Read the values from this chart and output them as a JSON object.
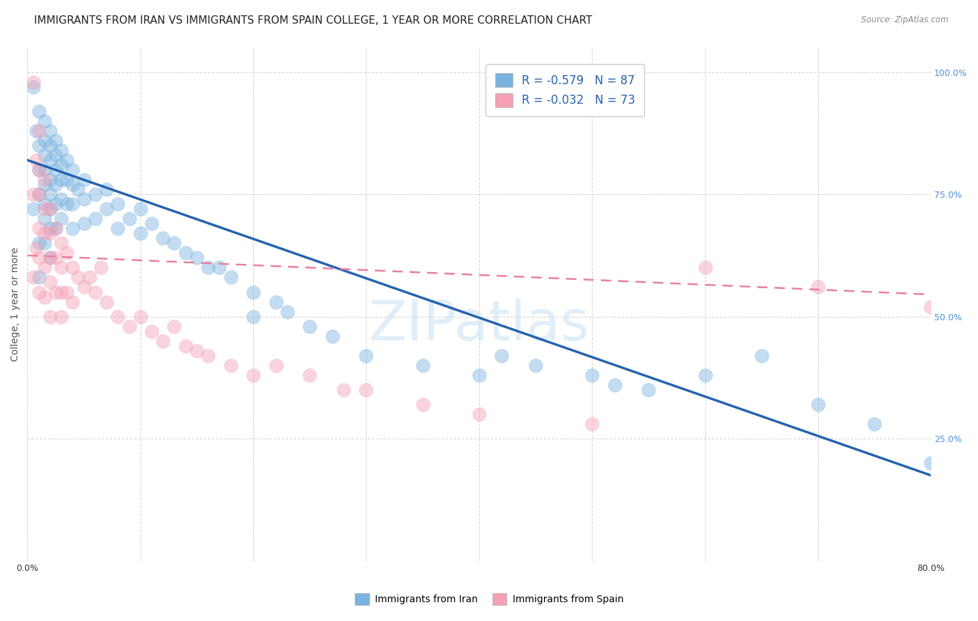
{
  "title": "IMMIGRANTS FROM IRAN VS IMMIGRANTS FROM SPAIN COLLEGE, 1 YEAR OR MORE CORRELATION CHART",
  "source": "Source: ZipAtlas.com",
  "ylabel": "College, 1 year or more",
  "xlim": [
    0.0,
    0.8
  ],
  "ylim": [
    0.0,
    1.05
  ],
  "iran_color": "#7ab3e0",
  "spain_color": "#f4a0b5",
  "iran_line_color": "#2563ae",
  "spain_line_color": "#e87fa0",
  "legend_r_iran": "-0.579",
  "legend_n_iran": "87",
  "legend_r_spain": "-0.032",
  "legend_n_spain": "73",
  "iran_line_x0": 0.0,
  "iran_line_y0": 0.82,
  "iran_line_x1": 0.8,
  "iran_line_y1": 0.175,
  "spain_line_x0": 0.0,
  "spain_line_y0": 0.625,
  "spain_line_x1": 0.8,
  "spain_line_y1": 0.545,
  "watermark": "ZIPatlas",
  "iran_x": [
    0.005,
    0.005,
    0.008,
    0.01,
    0.01,
    0.01,
    0.01,
    0.01,
    0.01,
    0.015,
    0.015,
    0.015,
    0.015,
    0.015,
    0.015,
    0.015,
    0.015,
    0.02,
    0.02,
    0.02,
    0.02,
    0.02,
    0.02,
    0.02,
    0.02,
    0.025,
    0.025,
    0.025,
    0.025,
    0.025,
    0.025,
    0.03,
    0.03,
    0.03,
    0.03,
    0.03,
    0.035,
    0.035,
    0.035,
    0.04,
    0.04,
    0.04,
    0.04,
    0.045,
    0.05,
    0.05,
    0.05,
    0.06,
    0.06,
    0.07,
    0.07,
    0.08,
    0.08,
    0.09,
    0.1,
    0.1,
    0.11,
    0.12,
    0.13,
    0.14,
    0.15,
    0.16,
    0.17,
    0.18,
    0.2,
    0.2,
    0.22,
    0.23,
    0.25,
    0.27,
    0.3,
    0.35,
    0.4,
    0.42,
    0.45,
    0.5,
    0.52,
    0.55,
    0.6,
    0.65,
    0.7,
    0.75,
    0.8
  ],
  "iran_y": [
    0.97,
    0.72,
    0.88,
    0.92,
    0.85,
    0.8,
    0.75,
    0.65,
    0.58,
    0.9,
    0.86,
    0.83,
    0.8,
    0.77,
    0.73,
    0.7,
    0.65,
    0.88,
    0.85,
    0.82,
    0.78,
    0.75,
    0.72,
    0.68,
    0.62,
    0.86,
    0.83,
    0.8,
    0.77,
    0.73,
    0.68,
    0.84,
    0.81,
    0.78,
    0.74,
    0.7,
    0.82,
    0.78,
    0.73,
    0.8,
    0.77,
    0.73,
    0.68,
    0.76,
    0.78,
    0.74,
    0.69,
    0.75,
    0.7,
    0.76,
    0.72,
    0.73,
    0.68,
    0.7,
    0.72,
    0.67,
    0.69,
    0.66,
    0.65,
    0.63,
    0.62,
    0.6,
    0.6,
    0.58,
    0.55,
    0.5,
    0.53,
    0.51,
    0.48,
    0.46,
    0.42,
    0.4,
    0.38,
    0.42,
    0.4,
    0.38,
    0.36,
    0.35,
    0.38,
    0.42,
    0.32,
    0.28,
    0.2
  ],
  "spain_x": [
    0.005,
    0.005,
    0.005,
    0.008,
    0.008,
    0.01,
    0.01,
    0.01,
    0.01,
    0.01,
    0.01,
    0.015,
    0.015,
    0.015,
    0.015,
    0.015,
    0.02,
    0.02,
    0.02,
    0.02,
    0.02,
    0.025,
    0.025,
    0.025,
    0.03,
    0.03,
    0.03,
    0.03,
    0.035,
    0.035,
    0.04,
    0.04,
    0.045,
    0.05,
    0.055,
    0.06,
    0.065,
    0.07,
    0.08,
    0.09,
    0.1,
    0.11,
    0.12,
    0.13,
    0.14,
    0.15,
    0.16,
    0.18,
    0.2,
    0.22,
    0.25,
    0.28,
    0.3,
    0.35,
    0.4,
    0.5,
    0.6,
    0.7,
    0.8
  ],
  "spain_y": [
    0.98,
    0.75,
    0.58,
    0.82,
    0.64,
    0.88,
    0.8,
    0.75,
    0.68,
    0.62,
    0.55,
    0.78,
    0.72,
    0.67,
    0.6,
    0.54,
    0.72,
    0.67,
    0.62,
    0.57,
    0.5,
    0.68,
    0.62,
    0.55,
    0.65,
    0.6,
    0.55,
    0.5,
    0.63,
    0.55,
    0.6,
    0.53,
    0.58,
    0.56,
    0.58,
    0.55,
    0.6,
    0.53,
    0.5,
    0.48,
    0.5,
    0.47,
    0.45,
    0.48,
    0.44,
    0.43,
    0.42,
    0.4,
    0.38,
    0.4,
    0.38,
    0.35,
    0.35,
    0.32,
    0.3,
    0.28,
    0.6,
    0.56,
    0.52
  ],
  "background_color": "#ffffff",
  "grid_color": "#cccccc",
  "title_fontsize": 11,
  "axis_label_fontsize": 10,
  "tick_fontsize": 9,
  "right_tick_color": "#4a90d9"
}
